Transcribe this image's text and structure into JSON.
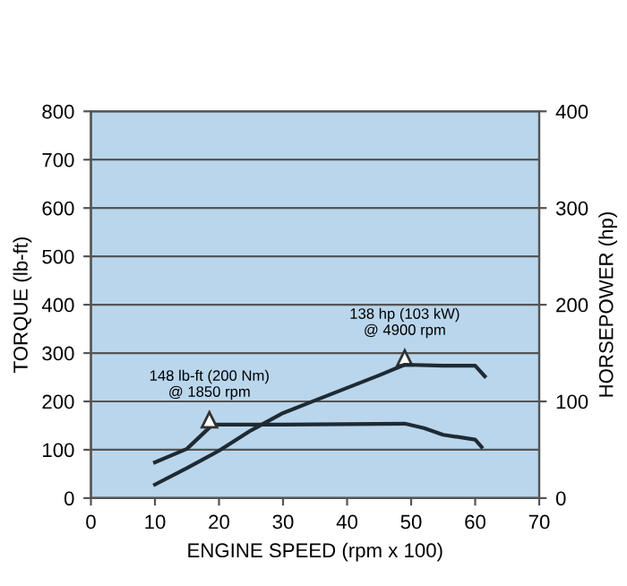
{
  "chart_data": {
    "type": "line",
    "xlabel": "ENGINE SPEED (rpm x 100)",
    "ylabel": "TORQUE (lb-ft)",
    "y2label": "HORSEPOWER (hp)",
    "xlim": [
      0,
      70
    ],
    "xticks": [
      0,
      10,
      20,
      30,
      40,
      50,
      60,
      70
    ],
    "ylim": [
      0,
      800
    ],
    "yticks": [
      0,
      100,
      200,
      300,
      400,
      500,
      600,
      700,
      800
    ],
    "y2lim": [
      0,
      400
    ],
    "y2ticks": [
      0,
      100,
      200,
      300,
      400
    ],
    "grid": "y",
    "marker": "none",
    "line_style": "solid",
    "series": [
      {
        "color": "#1f2a33",
        "x": [
          10,
          15,
          19,
          25,
          30,
          40,
          49,
          52,
          55,
          60,
          61
        ],
        "values": [
          74,
          102,
          152,
          152,
          152,
          153,
          154,
          145,
          131,
          121,
          106
        ]
      },
      {
        "color": "#1f2a33",
        "axis": "y2",
        "x": [
          10,
          15,
          20,
          25,
          30,
          35,
          40,
          45,
          49,
          55,
          60,
          61.5
        ],
        "values": [
          14,
          31,
          49,
          70,
          88,
          101,
          114,
          127,
          138,
          137,
          137,
          126
        ]
      }
    ],
    "annotations": [
      {
        "text": "148 lb-ft (200 Nm)\n@ 1850 rpm",
        "x": 18.5,
        "y": 148
      },
      {
        "text": "138 hp (103 kW)\n@ 4900 rpm",
        "x": 49,
        "y": 276
      }
    ]
  }
}
